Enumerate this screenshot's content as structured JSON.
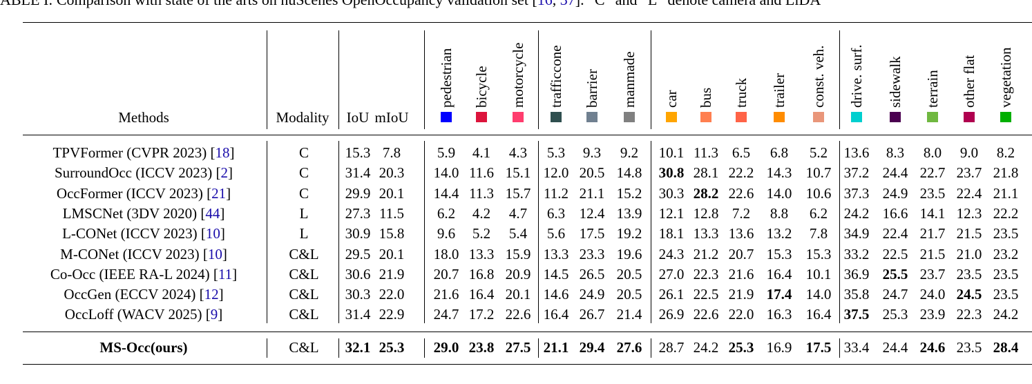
{
  "caption": {
    "prefix": "ABLE I: Comparison with state of the arts on nuScenes OpenOccupancy validation set [",
    "cite1": "16",
    "sep": ", ",
    "cite2": "37",
    "suffix": "]. “C” and “L” denote camera and LiDA"
  },
  "headers": {
    "methods": "Methods",
    "modality": "Modality",
    "iou": "IoU",
    "miou": "mIoU"
  },
  "classes": [
    {
      "name": "pedestrian",
      "color": "#0000ff"
    },
    {
      "name": "bicycle",
      "color": "#dc143c"
    },
    {
      "name": "motorcycle",
      "color": "#ff3d6e"
    },
    {
      "name": "trafficcone",
      "color": "#2f4f4f"
    },
    {
      "name": "barrier",
      "color": "#708090"
    },
    {
      "name": "manmade",
      "color": "#808080"
    },
    {
      "name": "car",
      "color": "#ffa500"
    },
    {
      "name": "bus",
      "color": "#ff7f50"
    },
    {
      "name": "truck",
      "color": "#ff6347"
    },
    {
      "name": "trailer",
      "color": "#ff8c00"
    },
    {
      "name": "const. veh.",
      "color": "#e9967a"
    },
    {
      "name": "drive. surf.",
      "color": "#00cfcf"
    },
    {
      "name": "sidewalk",
      "color": "#4b0050"
    },
    {
      "name": "terrain",
      "color": "#70b840"
    },
    {
      "name": "other flat",
      "color": "#b0004f"
    },
    {
      "name": "vegetation",
      "color": "#00af00"
    }
  ],
  "rows": [
    {
      "method": "TPVFormer (CVPR 2023) [",
      "cite": "18",
      "close": "]",
      "modality": "C",
      "values": [
        "15.3",
        "7.8",
        "5.9",
        "4.1",
        "4.3",
        "5.3",
        "9.3",
        "9.2",
        "10.1",
        "11.3",
        "6.5",
        "6.8",
        "5.2",
        "13.6",
        "8.3",
        "8.0",
        "9.0",
        "8.2"
      ],
      "bold": []
    },
    {
      "method": "SurroundOcc (ICCV 2023) [",
      "cite": "2",
      "close": "]",
      "modality": "C",
      "values": [
        "31.4",
        "20.3",
        "14.0",
        "11.6",
        "15.1",
        "12.0",
        "20.5",
        "14.8",
        "30.8",
        "28.1",
        "22.2",
        "14.3",
        "10.7",
        "37.2",
        "24.4",
        "22.7",
        "23.7",
        "21.8"
      ],
      "bold": [
        8
      ]
    },
    {
      "method": "OccFormer (ICCV 2023) [",
      "cite": "21",
      "close": "]",
      "modality": "C",
      "values": [
        "29.9",
        "20.1",
        "14.4",
        "11.3",
        "15.7",
        "11.2",
        "21.1",
        "15.2",
        "30.3",
        "28.2",
        "22.6",
        "14.0",
        "10.6",
        "37.3",
        "24.9",
        "23.5",
        "22.4",
        "21.1"
      ],
      "bold": [
        9
      ]
    },
    {
      "method": "LMSCNet (3DV 2020) [",
      "cite": "44",
      "close": "]",
      "modality": "L",
      "values": [
        "27.3",
        "11.5",
        "6.2",
        "4.2",
        "4.7",
        "6.3",
        "12.4",
        "13.9",
        "12.1",
        "12.8",
        "7.2",
        "8.8",
        "6.2",
        "24.2",
        "16.6",
        "14.1",
        "12.3",
        "22.2"
      ],
      "bold": []
    },
    {
      "method": "L-CONet (ICCV 2023) [",
      "cite": "10",
      "close": "]",
      "modality": "L",
      "values": [
        "30.9",
        "15.8",
        "9.6",
        "5.2",
        "5.4",
        "5.6",
        "17.5",
        "19.2",
        "18.1",
        "13.3",
        "13.6",
        "13.2",
        "7.8",
        "34.9",
        "22.4",
        "21.7",
        "21.5",
        "23.5"
      ],
      "bold": []
    },
    {
      "method": "M-CONet (ICCV 2023) [",
      "cite": "10",
      "close": "]",
      "modality": "C&L",
      "values": [
        "29.5",
        "20.1",
        "18.0",
        "13.3",
        "15.9",
        "13.3",
        "23.3",
        "19.6",
        "24.3",
        "21.2",
        "20.7",
        "15.3",
        "15.3",
        "33.2",
        "22.5",
        "21.5",
        "21.0",
        "23.2"
      ],
      "bold": []
    },
    {
      "method": "Co-Occ (IEEE RA-L 2024) [",
      "cite": "11",
      "close": "]",
      "modality": "C&L",
      "values": [
        "30.6",
        "21.9",
        "20.7",
        "16.8",
        "20.9",
        "14.5",
        "26.5",
        "20.5",
        "27.0",
        "22.3",
        "21.6",
        "16.4",
        "10.1",
        "36.9",
        "25.5",
        "23.7",
        "23.5",
        "23.5"
      ],
      "bold": [
        14
      ]
    },
    {
      "method": "OccGen (ECCV 2024) [",
      "cite": "12",
      "close": "]",
      "modality": "C&L",
      "values": [
        "30.3",
        "22.0",
        "21.6",
        "16.4",
        "20.1",
        "14.6",
        "24.9",
        "20.5",
        "26.1",
        "22.5",
        "21.9",
        "17.4",
        "14.0",
        "35.8",
        "24.7",
        "24.0",
        "24.5",
        "23.5"
      ],
      "bold": [
        11,
        16
      ]
    },
    {
      "method": "OccLoff (WACV 2025) [",
      "cite": "9",
      "close": "]",
      "modality": "C&L",
      "values": [
        "31.4",
        "22.9",
        "24.7",
        "17.2",
        "22.6",
        "16.4",
        "26.7",
        "21.4",
        "26.9",
        "22.6",
        "22.0",
        "16.3",
        "16.4",
        "37.5",
        "25.3",
        "23.9",
        "22.3",
        "24.2"
      ],
      "bold": [
        13
      ]
    }
  ],
  "ours": {
    "method": "MS-Occ(ours)",
    "modality": "C&L",
    "values": [
      "32.1",
      "25.3",
      "29.0",
      "23.8",
      "27.5",
      "21.1",
      "29.4",
      "27.6",
      "28.7",
      "24.2",
      "25.3",
      "16.9",
      "17.5",
      "33.4",
      "24.4",
      "24.6",
      "23.5",
      "28.4"
    ],
    "bold": [
      0,
      1,
      2,
      3,
      4,
      5,
      6,
      7,
      10,
      12,
      15,
      17
    ]
  }
}
